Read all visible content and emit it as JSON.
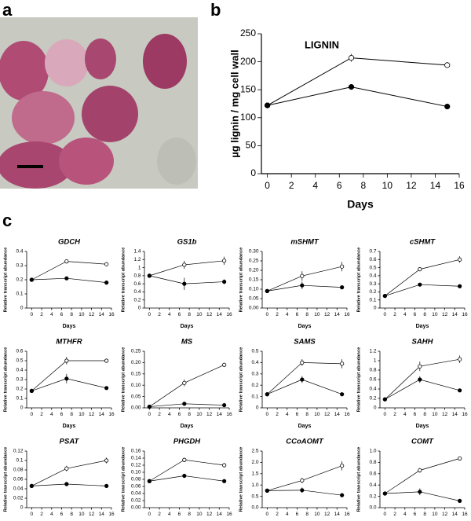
{
  "panel_labels": [
    "a",
    "b",
    "c"
  ],
  "chart_data": [
    {
      "type": "line",
      "title": "LIGNIN",
      "x_label": "Days",
      "y_label": "µg lignin / mg cell wall",
      "x": [
        0,
        7,
        15
      ],
      "xlim": [
        -0.5,
        16
      ],
      "xticks": [
        0,
        2,
        4,
        6,
        8,
        10,
        12,
        14,
        16
      ],
      "ylim": [
        0,
        250
      ],
      "yticks": [
        0,
        50,
        100,
        150,
        200,
        250
      ],
      "series": [
        {
          "color": "#000000",
          "fill": "#ffffff",
          "values": [
            122,
            207,
            194
          ],
          "errors": [
            2,
            7,
            3
          ]
        },
        {
          "color": "#000000",
          "fill": "#000000",
          "values": [
            122,
            155,
            120
          ],
          "errors": [
            2,
            3,
            3
          ]
        }
      ]
    },
    {
      "type": "line",
      "title": "GDCH",
      "x_label": "Days",
      "y_label": "Relative transcript abundance",
      "x": [
        0,
        7,
        15
      ],
      "xlim": [
        -1,
        16
      ],
      "xticks": [
        0,
        2,
        4,
        6,
        8,
        10,
        12,
        14,
        16
      ],
      "ylim": [
        0,
        0.4
      ],
      "yticks": [
        0,
        0.1,
        0.2,
        0.3,
        0.4
      ],
      "series": [
        {
          "color": "#000000",
          "fill": "#ffffff",
          "values": [
            0.2,
            0.33,
            0.31
          ],
          "errors": [
            0.01,
            0.01,
            0.015
          ]
        },
        {
          "color": "#000000",
          "fill": "#000000",
          "values": [
            0.2,
            0.21,
            0.18
          ],
          "errors": [
            0.01,
            0.005,
            0.01
          ]
        }
      ]
    },
    {
      "type": "line",
      "title": "GS1b",
      "x_label": "Days",
      "y_label": "Relative transcript abundance",
      "x": [
        0,
        7,
        15
      ],
      "xlim": [
        -1,
        16
      ],
      "xticks": [
        0,
        2,
        4,
        6,
        8,
        10,
        12,
        14,
        16
      ],
      "ylim": [
        0,
        1.4
      ],
      "yticks": [
        0,
        0.2,
        0.4,
        0.6,
        0.8,
        1,
        1.2,
        1.4
      ],
      "series": [
        {
          "color": "#000000",
          "fill": "#ffffff",
          "values": [
            0.8,
            1.07,
            1.17
          ],
          "errors": [
            0.02,
            0.1,
            0.1
          ]
        },
        {
          "color": "#000000",
          "fill": "#000000",
          "values": [
            0.8,
            0.6,
            0.65
          ],
          "errors": [
            0.02,
            0.15,
            0.06
          ]
        }
      ]
    },
    {
      "type": "line",
      "title": "mSHMT",
      "x_label": "Days",
      "y_label": "Relative transcript abundance",
      "x": [
        0,
        7,
        15
      ],
      "xlim": [
        -1,
        16
      ],
      "xticks": [
        0,
        2,
        4,
        6,
        8,
        10,
        12,
        14,
        16
      ],
      "ylim": [
        0,
        0.3
      ],
      "yticks": [
        {
          "value": 0,
          "label": "0.00"
        },
        {
          "value": 0.05,
          "label": "0.05"
        },
        {
          "value": 0.1,
          "label": "0.10"
        },
        {
          "value": 0.15,
          "label": "0.15"
        },
        {
          "value": 0.2,
          "label": "0.20"
        },
        {
          "value": 0.25,
          "label": "0.25"
        },
        {
          "value": 0.3,
          "label": "0.30"
        }
      ],
      "series": [
        {
          "color": "#000000",
          "fill": "#ffffff",
          "values": [
            0.09,
            0.17,
            0.22
          ],
          "errors": [
            0.005,
            0.025,
            0.025
          ]
        },
        {
          "color": "#000000",
          "fill": "#000000",
          "values": [
            0.09,
            0.12,
            0.11
          ],
          "errors": [
            0.005,
            0.02,
            0.005
          ]
        }
      ]
    },
    {
      "type": "line",
      "title": "cSHMT",
      "x_label": "Days",
      "y_label": "Relative transcript abundance",
      "x": [
        0,
        7,
        15
      ],
      "xlim": [
        -1,
        16
      ],
      "xticks": [
        0,
        2,
        4,
        6,
        8,
        10,
        12,
        14,
        16
      ],
      "ylim": [
        0,
        0.7
      ],
      "yticks": [
        0,
        0.1,
        0.2,
        0.3,
        0.4,
        0.5,
        0.6,
        0.7
      ],
      "series": [
        {
          "color": "#000000",
          "fill": "#ffffff",
          "values": [
            0.15,
            0.48,
            0.6
          ],
          "errors": [
            0.01,
            0.02,
            0.04
          ]
        },
        {
          "color": "#000000",
          "fill": "#000000",
          "values": [
            0.15,
            0.29,
            0.27
          ],
          "errors": [
            0.01,
            0.01,
            0.01
          ]
        }
      ]
    },
    {
      "type": "line",
      "title": "MTHFR",
      "x_label": "Days",
      "y_label": "Relative transcript abundance",
      "x": [
        0,
        7,
        15
      ],
      "xlim": [
        -1,
        16
      ],
      "xticks": [
        0,
        2,
        4,
        6,
        8,
        10,
        12,
        14,
        16
      ],
      "ylim": [
        0,
        0.6
      ],
      "yticks": [
        0,
        0.1,
        0.2,
        0.3,
        0.4,
        0.5,
        0.6
      ],
      "series": [
        {
          "color": "#000000",
          "fill": "#ffffff",
          "values": [
            0.18,
            0.5,
            0.5
          ],
          "errors": [
            0.01,
            0.04,
            0.01
          ]
        },
        {
          "color": "#000000",
          "fill": "#000000",
          "values": [
            0.18,
            0.31,
            0.21
          ],
          "errors": [
            0.01,
            0.05,
            0.01
          ]
        }
      ]
    },
    {
      "type": "line",
      "title": "MS",
      "x_label": "Days",
      "y_label": "Relative transcript abundance",
      "x": [
        0,
        7,
        15
      ],
      "xlim": [
        -1,
        16
      ],
      "xticks": [
        0,
        2,
        4,
        6,
        8,
        10,
        12,
        14,
        16
      ],
      "ylim": [
        0,
        0.25
      ],
      "yticks": [
        {
          "value": 0,
          "label": "0.00"
        },
        {
          "value": 0.05,
          "label": "0.05"
        },
        {
          "value": 0.1,
          "label": "0.10"
        },
        {
          "value": 0.15,
          "label": "0.15"
        },
        {
          "value": 0.2,
          "label": "0.20"
        },
        {
          "value": 0.25,
          "label": "0.25"
        }
      ],
      "series": [
        {
          "color": "#000000",
          "fill": "#ffffff",
          "values": [
            0.005,
            0.11,
            0.19
          ],
          "errors": [
            0.002,
            0.015,
            0.005
          ]
        },
        {
          "color": "#000000",
          "fill": "#000000",
          "values": [
            0.005,
            0.018,
            0.012
          ],
          "errors": [
            0.002,
            0.002,
            0.002
          ]
        }
      ]
    },
    {
      "type": "line",
      "title": "SAMS",
      "x_label": "Days",
      "y_label": "Relative transcript abundance",
      "x": [
        0,
        7,
        15
      ],
      "xlim": [
        -1,
        16
      ],
      "xticks": [
        0,
        2,
        4,
        6,
        8,
        10,
        12,
        14,
        16
      ],
      "ylim": [
        0,
        0.5
      ],
      "yticks": [
        0,
        0.1,
        0.2,
        0.3,
        0.4,
        0.5
      ],
      "series": [
        {
          "color": "#000000",
          "fill": "#ffffff",
          "values": [
            0.12,
            0.4,
            0.39
          ],
          "errors": [
            0.005,
            0.03,
            0.04
          ]
        },
        {
          "color": "#000000",
          "fill": "#000000",
          "values": [
            0.12,
            0.25,
            0.12
          ],
          "errors": [
            0.005,
            0.03,
            0.005
          ]
        }
      ]
    },
    {
      "type": "line",
      "title": "SAHH",
      "x_label": "Days",
      "y_label": "Relative transcript abundance",
      "x": [
        0,
        7,
        15
      ],
      "xlim": [
        -1,
        16
      ],
      "xticks": [
        0,
        2,
        4,
        6,
        8,
        10,
        12,
        14,
        16
      ],
      "ylim": [
        0,
        1.2
      ],
      "yticks": [
        0,
        0.2,
        0.4,
        0.6,
        0.8,
        1,
        1.2
      ],
      "series": [
        {
          "color": "#000000",
          "fill": "#ffffff",
          "values": [
            0.18,
            0.88,
            1.03
          ],
          "errors": [
            0.01,
            0.1,
            0.08
          ]
        },
        {
          "color": "#000000",
          "fill": "#000000",
          "values": [
            0.18,
            0.6,
            0.37
          ],
          "errors": [
            0.01,
            0.07,
            0.01
          ]
        }
      ]
    },
    {
      "type": "line",
      "title": "PSAT",
      "x_label": "Days",
      "y_label": "Relative transcript abundance",
      "x": [
        0,
        7,
        15
      ],
      "xlim": [
        -1,
        16
      ],
      "xticks": [
        0,
        2,
        4,
        6,
        8,
        10,
        12,
        14,
        16
      ],
      "ylim": [
        0,
        0.12
      ],
      "yticks": [
        0,
        0.02,
        0.04,
        0.06,
        0.08,
        0.1,
        0.12
      ],
      "series": [
        {
          "color": "#000000",
          "fill": "#ffffff",
          "values": [
            0.046,
            0.083,
            0.1
          ],
          "errors": [
            0.003,
            0.006,
            0.006
          ]
        },
        {
          "color": "#000000",
          "fill": "#000000",
          "values": [
            0.046,
            0.05,
            0.046
          ],
          "errors": [
            0.003,
            0.004,
            0.002
          ]
        }
      ]
    },
    {
      "type": "line",
      "title": "PHGDH",
      "x_label": "Days",
      "y_label": "Relative transcript abundance",
      "x": [
        0,
        7,
        15
      ],
      "xlim": [
        -1,
        16
      ],
      "xticks": [
        0,
        2,
        4,
        6,
        8,
        10,
        12,
        14,
        16
      ],
      "ylim": [
        0,
        0.16
      ],
      "yticks": [
        {
          "value": 0,
          "label": "0.00"
        },
        {
          "value": 0.02,
          "label": "0.02"
        },
        {
          "value": 0.04,
          "label": "0.04"
        },
        {
          "value": 0.06,
          "label": "0.06"
        },
        {
          "value": 0.08,
          "label": "0.08"
        },
        {
          "value": 0.1,
          "label": "0.10"
        },
        {
          "value": 0.12,
          "label": "0.12"
        },
        {
          "value": 0.14,
          "label": "0.14"
        },
        {
          "value": 0.16,
          "label": "0.16"
        }
      ],
      "series": [
        {
          "color": "#000000",
          "fill": "#ffffff",
          "values": [
            0.075,
            0.135,
            0.12
          ],
          "errors": [
            0.004,
            0.006,
            0.002
          ]
        },
        {
          "color": "#000000",
          "fill": "#000000",
          "values": [
            0.075,
            0.09,
            0.075
          ],
          "errors": [
            0.004,
            0.002,
            0.002
          ]
        }
      ]
    },
    {
      "type": "line",
      "title": "CCoAOMT",
      "x_label": "Days",
      "y_label": "Relative transcript abundance",
      "x": [
        0,
        7,
        15
      ],
      "xlim": [
        -1,
        16
      ],
      "xticks": [
        0,
        2,
        4,
        6,
        8,
        10,
        12,
        14,
        16
      ],
      "ylim": [
        0,
        2.5
      ],
      "yticks": [
        {
          "value": 0,
          "label": "0.0"
        },
        {
          "value": 0.5,
          "label": "0.5"
        },
        {
          "value": 1,
          "label": "1.0"
        },
        {
          "value": 1.5,
          "label": "1.5"
        },
        {
          "value": 2,
          "label": "2.0"
        },
        {
          "value": 2.5,
          "label": "2.5"
        }
      ],
      "series": [
        {
          "color": "#000000",
          "fill": "#ffffff",
          "values": [
            0.75,
            1.2,
            1.85
          ],
          "errors": [
            0.05,
            0.12,
            0.2
          ]
        },
        {
          "color": "#000000",
          "fill": "#000000",
          "values": [
            0.75,
            0.77,
            0.55
          ],
          "errors": [
            0.05,
            0.12,
            0.03
          ]
        }
      ]
    },
    {
      "type": "line",
      "title": "COMT",
      "x_label": "Days",
      "y_label": "Relative transcript abundance",
      "x": [
        0,
        7,
        15
      ],
      "xlim": [
        -1,
        16
      ],
      "xticks": [
        0,
        2,
        4,
        6,
        8,
        10,
        12,
        14,
        16
      ],
      "ylim": [
        0,
        1.0
      ],
      "yticks": [
        {
          "value": 0,
          "label": "0.0"
        },
        {
          "value": 0.2,
          "label": "0.2"
        },
        {
          "value": 0.4,
          "label": "0.4"
        },
        {
          "value": 0.6,
          "label": "0.6"
        },
        {
          "value": 0.8,
          "label": "0.8"
        },
        {
          "value": 1,
          "label": "1.0"
        }
      ],
      "series": [
        {
          "color": "#000000",
          "fill": "#ffffff",
          "values": [
            0.25,
            0.66,
            0.87
          ],
          "errors": [
            0.01,
            0.04,
            0.03
          ]
        },
        {
          "color": "#000000",
          "fill": "#000000",
          "values": [
            0.25,
            0.28,
            0.12
          ],
          "errors": [
            0.01,
            0.06,
            0.01
          ]
        }
      ]
    }
  ]
}
